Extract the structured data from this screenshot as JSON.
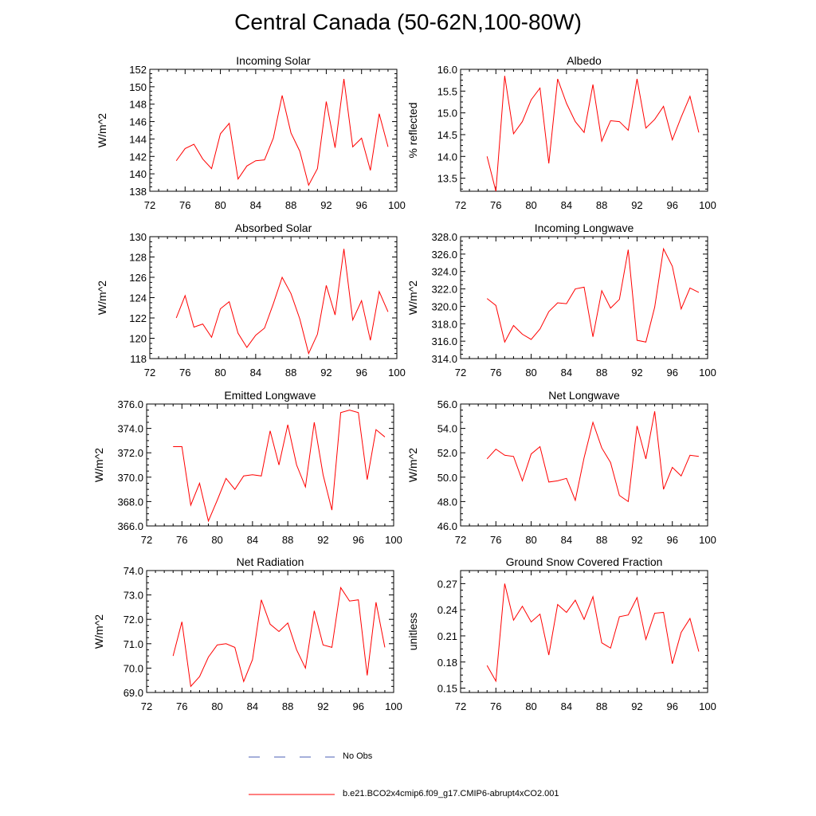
{
  "figure": {
    "title": "Central Canada (50-62N,100-80W)"
  },
  "legend": [
    {
      "label": "No Obs",
      "color": "#4b5fb4",
      "style": "dashed"
    },
    {
      "label": "b.e21.BCO2x4cmip6.f09_g17.CMIP6-abrupt4xCO2.001",
      "color": "#ff0000",
      "style": "solid"
    }
  ],
  "chart_data": [
    {
      "type": "line",
      "title": "Incoming Solar",
      "xlabel": "",
      "ylabel": "W/m^2",
      "xlim": [
        72,
        100
      ],
      "ylim": [
        138,
        152
      ],
      "xticks": [
        72,
        76,
        80,
        84,
        88,
        92,
        96,
        100
      ],
      "yticks": [
        138,
        140,
        142,
        144,
        146,
        148,
        150,
        152
      ],
      "ytick_decimals": 0,
      "x": [
        75,
        76,
        77,
        78,
        79,
        80,
        81,
        82,
        83,
        84,
        85,
        86,
        87,
        88,
        89,
        90,
        91,
        92,
        93,
        94,
        95,
        96,
        97,
        98,
        99
      ],
      "series": [
        {
          "name": "b.e21.BCO2x4cmip6.f09_g17.CMIP6-abrupt4xCO2.001",
          "color": "#ff0000",
          "values": [
            141.5,
            142.9,
            143.4,
            141.7,
            140.6,
            144.6,
            145.8,
            139.4,
            140.9,
            141.5,
            141.6,
            144.1,
            149.0,
            144.7,
            142.6,
            138.7,
            140.6,
            148.3,
            143.0,
            150.9,
            143.1,
            144.1,
            140.4,
            146.9,
            143.1
          ]
        }
      ]
    },
    {
      "type": "line",
      "title": "Albedo",
      "xlabel": "",
      "ylabel": "% reflected",
      "xlim": [
        72,
        100
      ],
      "ylim": [
        13.2,
        16.0
      ],
      "xticks": [
        72,
        76,
        80,
        84,
        88,
        92,
        96,
        100
      ],
      "yticks": [
        13.5,
        14.0,
        14.5,
        15.0,
        15.5,
        16.0
      ],
      "ytick_decimals": 1,
      "x": [
        75,
        76,
        77,
        78,
        79,
        80,
        81,
        82,
        83,
        84,
        85,
        86,
        87,
        88,
        89,
        90,
        91,
        92,
        93,
        94,
        95,
        96,
        97,
        98,
        99
      ],
      "series": [
        {
          "name": "b.e21.BCO2x4cmip6.f09_g17.CMIP6-abrupt4xCO2.001",
          "color": "#ff0000",
          "values": [
            14.0,
            13.2,
            15.85,
            14.52,
            14.8,
            15.3,
            15.57,
            13.84,
            15.78,
            15.22,
            14.8,
            14.55,
            15.65,
            14.35,
            14.82,
            14.8,
            14.6,
            15.78,
            14.65,
            14.85,
            15.15,
            14.38,
            14.9,
            15.38,
            14.55
          ]
        }
      ]
    },
    {
      "type": "line",
      "title": "Absorbed Solar",
      "xlabel": "",
      "ylabel": "W/m^2",
      "xlim": [
        72,
        100
      ],
      "ylim": [
        118,
        130
      ],
      "xticks": [
        72,
        76,
        80,
        84,
        88,
        92,
        96,
        100
      ],
      "yticks": [
        118,
        120,
        122,
        124,
        126,
        128,
        130
      ],
      "ytick_decimals": 0,
      "x": [
        75,
        76,
        77,
        78,
        79,
        80,
        81,
        82,
        83,
        84,
        85,
        86,
        87,
        88,
        89,
        90,
        91,
        92,
        93,
        94,
        95,
        96,
        97,
        98,
        99
      ],
      "series": [
        {
          "name": "b.e21.BCO2x4cmip6.f09_g17.CMIP6-abrupt4xCO2.001",
          "color": "#ff0000",
          "values": [
            122.0,
            124.2,
            121.1,
            121.4,
            120.1,
            122.9,
            123.6,
            120.5,
            119.1,
            120.3,
            121.0,
            123.4,
            126.0,
            124.4,
            121.9,
            118.5,
            120.4,
            125.2,
            122.3,
            128.8,
            121.8,
            123.7,
            119.8,
            124.6,
            122.6
          ]
        }
      ]
    },
    {
      "type": "line",
      "title": "Incoming Longwave",
      "xlabel": "",
      "ylabel": "W/m^2",
      "xlim": [
        72,
        100
      ],
      "ylim": [
        314,
        328
      ],
      "xticks": [
        72,
        76,
        80,
        84,
        88,
        92,
        96,
        100
      ],
      "yticks": [
        314,
        316,
        318,
        320,
        322,
        324,
        326,
        328
      ],
      "ytick_decimals": 1,
      "x": [
        75,
        76,
        77,
        78,
        79,
        80,
        81,
        82,
        83,
        84,
        85,
        86,
        87,
        88,
        89,
        90,
        91,
        92,
        93,
        94,
        95,
        96,
        97,
        98,
        99
      ],
      "series": [
        {
          "name": "b.e21.BCO2x4cmip6.f09_g17.CMIP6-abrupt4xCO2.001",
          "color": "#ff0000",
          "values": [
            320.9,
            320.1,
            315.9,
            317.8,
            316.8,
            316.2,
            317.4,
            319.4,
            320.4,
            320.3,
            322.0,
            322.2,
            316.5,
            321.8,
            319.8,
            320.8,
            326.5,
            316.1,
            315.9,
            319.9,
            326.6,
            324.6,
            319.7,
            322.1,
            321.6
          ]
        }
      ]
    },
    {
      "type": "line",
      "title": "Emitted Longwave",
      "xlabel": "",
      "ylabel": "W/m^2",
      "xlim": [
        72,
        100
      ],
      "ylim": [
        366,
        376
      ],
      "xticks": [
        72,
        76,
        80,
        84,
        88,
        92,
        96,
        100
      ],
      "yticks": [
        366,
        368,
        370,
        372,
        374,
        376
      ],
      "ytick_decimals": 1,
      "x": [
        75,
        76,
        77,
        78,
        79,
        80,
        81,
        82,
        83,
        84,
        85,
        86,
        87,
        88,
        89,
        90,
        91,
        92,
        93,
        94,
        95,
        96,
        97,
        98,
        99
      ],
      "series": [
        {
          "name": "b.e21.BCO2x4cmip6.f09_g17.CMIP6-abrupt4xCO2.001",
          "color": "#ff0000",
          "values": [
            372.5,
            372.5,
            367.7,
            369.5,
            366.4,
            368.1,
            369.9,
            369.0,
            370.1,
            370.2,
            370.1,
            373.8,
            371.0,
            374.3,
            371.0,
            369.2,
            374.5,
            370.2,
            367.3,
            375.3,
            375.5,
            375.3,
            369.8,
            373.9,
            373.3
          ]
        }
      ]
    },
    {
      "type": "line",
      "title": "Net Longwave",
      "xlabel": "",
      "ylabel": "W/m^2",
      "xlim": [
        72,
        100
      ],
      "ylim": [
        46,
        56
      ],
      "xticks": [
        72,
        76,
        80,
        84,
        88,
        92,
        96,
        100
      ],
      "yticks": [
        46,
        48,
        50,
        52,
        54,
        56
      ],
      "ytick_decimals": 1,
      "x": [
        75,
        76,
        77,
        78,
        79,
        80,
        81,
        82,
        83,
        84,
        85,
        86,
        87,
        88,
        89,
        90,
        91,
        92,
        93,
        94,
        95,
        96,
        97,
        98,
        99
      ],
      "series": [
        {
          "name": "b.e21.BCO2x4cmip6.f09_g17.CMIP6-abrupt4xCO2.001",
          "color": "#ff0000",
          "values": [
            51.5,
            52.3,
            51.8,
            51.7,
            49.7,
            51.9,
            52.5,
            49.6,
            49.7,
            49.9,
            48.1,
            51.6,
            54.5,
            52.4,
            51.2,
            48.5,
            48.0,
            54.2,
            51.5,
            55.4,
            49.0,
            50.8,
            50.1,
            51.8,
            51.7
          ]
        }
      ]
    },
    {
      "type": "line",
      "title": "Net Radiation",
      "xlabel": "",
      "ylabel": "W/m^2",
      "xlim": [
        72,
        100
      ],
      "ylim": [
        69,
        74
      ],
      "xticks": [
        72,
        76,
        80,
        84,
        88,
        92,
        96,
        100
      ],
      "yticks": [
        69,
        70,
        71,
        72,
        73,
        74
      ],
      "ytick_decimals": 1,
      "x": [
        75,
        76,
        77,
        78,
        79,
        80,
        81,
        82,
        83,
        84,
        85,
        86,
        87,
        88,
        89,
        90,
        91,
        92,
        93,
        94,
        95,
        96,
        97,
        98,
        99
      ],
      "series": [
        {
          "name": "b.e21.BCO2x4cmip6.f09_g17.CMIP6-abrupt4xCO2.001",
          "color": "#ff0000",
          "values": [
            70.5,
            71.9,
            69.25,
            69.65,
            70.45,
            70.95,
            71.0,
            70.85,
            69.45,
            70.35,
            72.8,
            71.8,
            71.5,
            71.85,
            70.75,
            70.0,
            72.35,
            70.95,
            70.85,
            73.3,
            72.75,
            72.8,
            69.7,
            72.7,
            70.85
          ]
        }
      ]
    },
    {
      "type": "line",
      "title": "Ground Snow Covered Fraction",
      "xlabel": "",
      "ylabel": "unitless",
      "xlim": [
        72,
        100
      ],
      "ylim": [
        0.145,
        0.285
      ],
      "xticks": [
        72,
        76,
        80,
        84,
        88,
        92,
        96,
        100
      ],
      "yticks": [
        0.15,
        0.18,
        0.21,
        0.24,
        0.27
      ],
      "ytick_decimals": 2,
      "x": [
        75,
        76,
        77,
        78,
        79,
        80,
        81,
        82,
        83,
        84,
        85,
        86,
        87,
        88,
        89,
        90,
        91,
        92,
        93,
        94,
        95,
        96,
        97,
        98,
        99
      ],
      "series": [
        {
          "name": "b.e21.BCO2x4cmip6.f09_g17.CMIP6-abrupt4xCO2.001",
          "color": "#ff0000",
          "values": [
            0.176,
            0.158,
            0.27,
            0.228,
            0.244,
            0.226,
            0.235,
            0.188,
            0.246,
            0.237,
            0.251,
            0.229,
            0.255,
            0.202,
            0.196,
            0.232,
            0.234,
            0.254,
            0.206,
            0.236,
            0.237,
            0.178,
            0.214,
            0.23,
            0.192
          ]
        }
      ]
    }
  ]
}
